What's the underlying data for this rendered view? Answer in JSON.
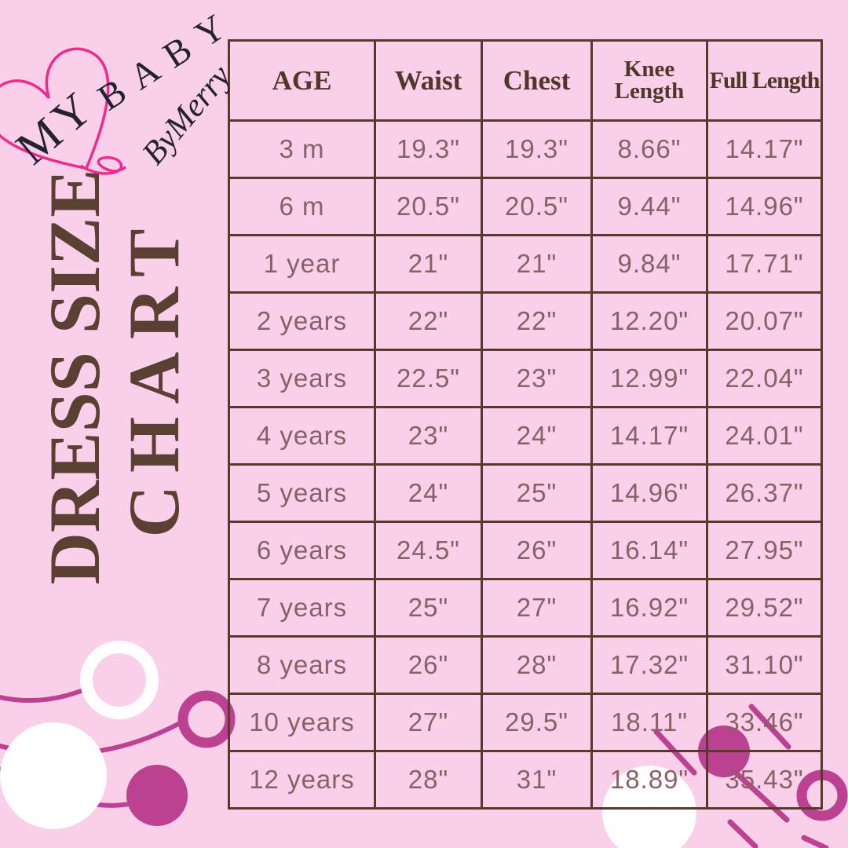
{
  "brand": {
    "word_my": "MY",
    "word_baby": "BABY",
    "signature": "ByMerry"
  },
  "title": {
    "line1": "DRESS SIZE",
    "line2": "CHART"
  },
  "chart_data": {
    "type": "table",
    "title": "DRESS SIZE CHART",
    "columns": [
      "AGE",
      "Waist",
      "Chest",
      "Knee Length",
      "Full Length"
    ],
    "rows": [
      [
        "3 m",
        "19.3\"",
        "19.3\"",
        "8.66\"",
        "14.17\""
      ],
      [
        "6 m",
        "20.5\"",
        "20.5\"",
        "9.44\"",
        "14.96\""
      ],
      [
        "1 year",
        "21\"",
        "21\"",
        "9.84\"",
        "17.71\""
      ],
      [
        "2 years",
        "22\"",
        "22\"",
        "12.20\"",
        "20.07\""
      ],
      [
        "3 years",
        "22.5\"",
        "23\"",
        "12.99\"",
        "22.04\""
      ],
      [
        "4 years",
        "23\"",
        "24\"",
        "14.17\"",
        "24.01\""
      ],
      [
        "5 years",
        "24\"",
        "25\"",
        "14.96\"",
        "26.37\""
      ],
      [
        "6 years",
        "24.5\"",
        "26\"",
        "16.14\"",
        "27.95\""
      ],
      [
        "7 years",
        "25\"",
        "27\"",
        "16.92\"",
        "29.52\""
      ],
      [
        "8 years",
        "26\"",
        "28\"",
        "17.32\"",
        "31.10\""
      ],
      [
        "10 years",
        "27\"",
        "29.5\"",
        "18.11\"",
        "33.46\""
      ],
      [
        "12 years",
        "28\"",
        "31\"",
        "18.89\"",
        "35.43\""
      ]
    ]
  },
  "colors": {
    "background": "#f9cfe9",
    "grid_brown": "#573a2c",
    "header_text": "#4f372a",
    "cell_text": "#8b5f66",
    "title_brown": "#5a4032",
    "magenta": "#bc4191",
    "hot_pink": "#ee2a8e",
    "white": "#ffffff",
    "logo_ink": "#23232e"
  }
}
